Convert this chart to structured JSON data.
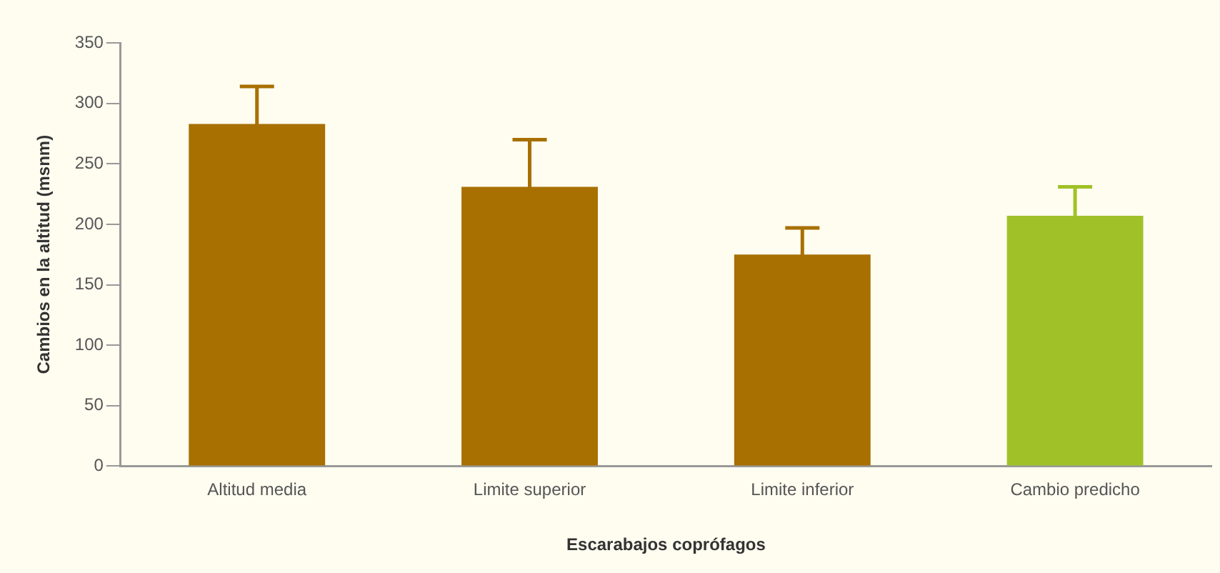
{
  "chart_data": {
    "type": "bar",
    "xlabel": "Escarabajos coprófagos",
    "ylabel": "Cambios en la altitud (msnm)",
    "categories": [
      "Altitud media",
      "Limite superior",
      "Limite inferior",
      "Cambio predicho"
    ],
    "values": [
      283,
      231,
      175,
      207
    ],
    "colors": [
      "#a87000",
      "#a87000",
      "#a87000",
      "#a0c228"
    ],
    "errors": [
      31,
      39,
      22,
      24
    ],
    "ylim": [
      0,
      350
    ],
    "yticks": [
      0,
      50,
      100,
      150,
      200,
      250,
      300,
      350
    ],
    "grid": false
  }
}
